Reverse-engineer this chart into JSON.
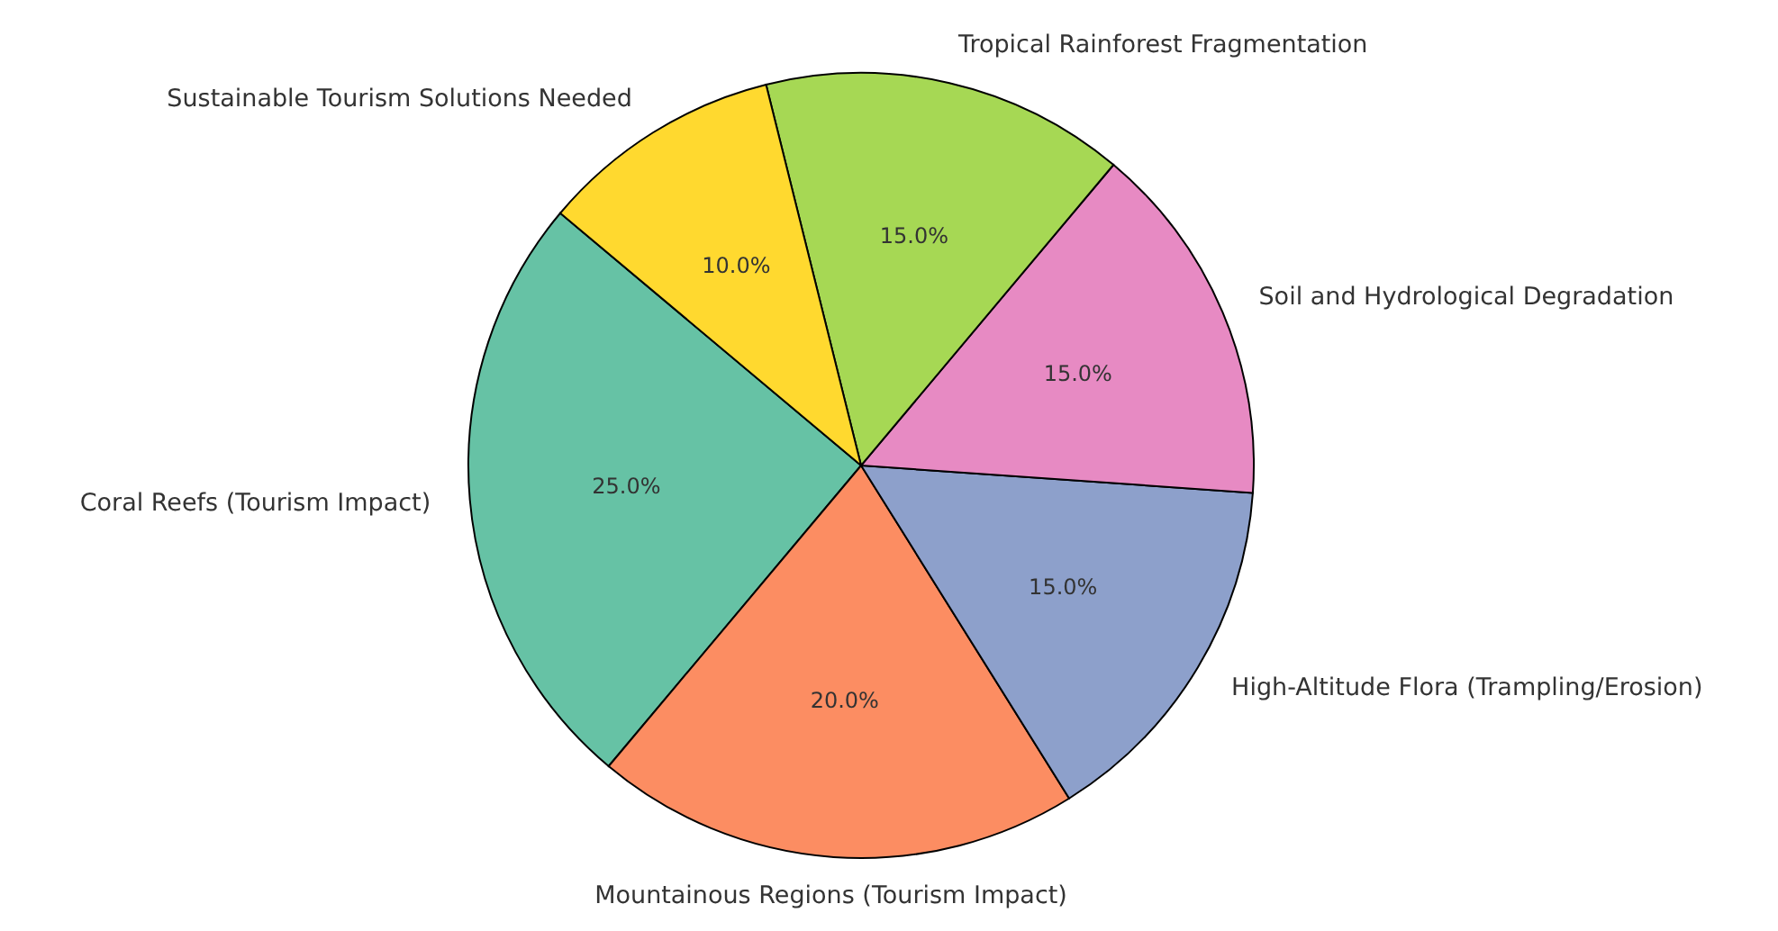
{
  "chart_data": {
    "type": "pie",
    "categories": [
      "Coral Reefs (Tourism Impact)",
      "Mountainous Regions (Tourism Impact)",
      "High-Altitude Flora (Trampling/Erosion)",
      "Soil and Hydrological Degradation",
      "Tropical Rainforest Fragmentation",
      "Sustainable Tourism Solutions Needed"
    ],
    "values": [
      25,
      20,
      15,
      15,
      15,
      10
    ],
    "colors": [
      "#66c2a5",
      "#fc8d62",
      "#8da0cb",
      "#e78ac3",
      "#a6d854",
      "#ffd92f"
    ],
    "value_labels": [
      "25.0%",
      "20.0%",
      "15.0%",
      "15.0%",
      "15.0%",
      "10.0%"
    ]
  }
}
